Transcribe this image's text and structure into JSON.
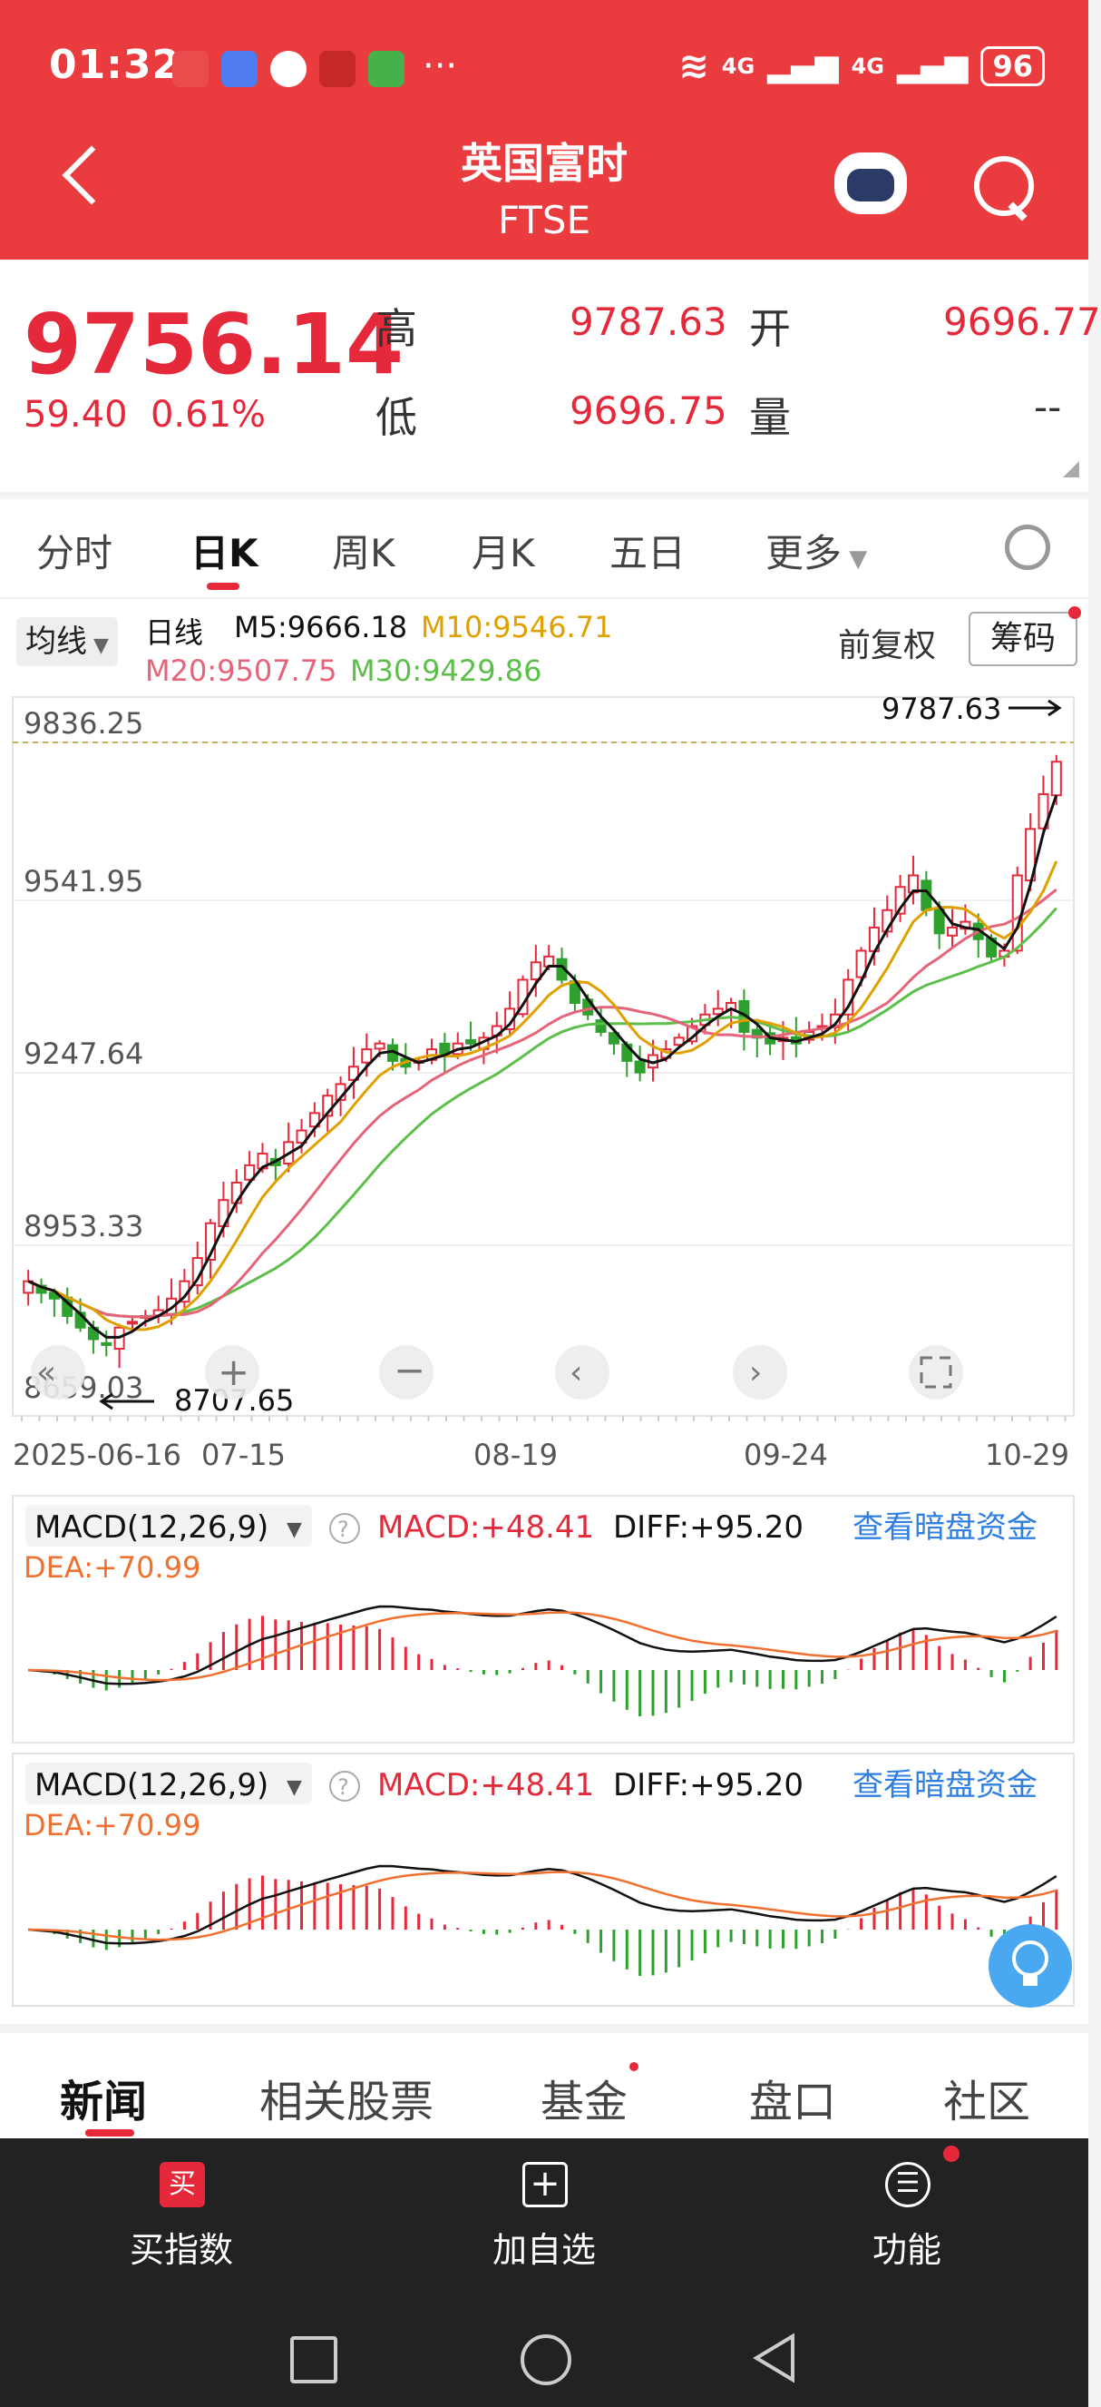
{
  "status": {
    "time": "01:32",
    "network1": "4G",
    "network2": "4G",
    "battery": "96"
  },
  "header": {
    "title": "英国富时",
    "subtitle": "FTSE"
  },
  "quote": {
    "price": "9756.14",
    "change": "59.40",
    "change_pct": "0.61%",
    "high_label": "高",
    "high": "9787.63",
    "open_label": "开",
    "open": "9696.77",
    "low_label": "低",
    "low": "9696.75",
    "vol_label": "量",
    "vol": "--"
  },
  "ktabs": {
    "items": [
      "分时",
      "日K",
      "周K",
      "月K",
      "五日",
      "更多"
    ],
    "active": "日K"
  },
  "chart_toolbar": {
    "junxian": "均线",
    "fuquan": "前复权",
    "chouma": "筹码"
  },
  "ma_legend": {
    "daily": "日线",
    "m5": "M5:9666.18",
    "m10": "M10:9546.71",
    "m20": "M20:9507.75",
    "m30": "M30:9429.86"
  },
  "colors": {
    "up": "#e5283a",
    "down": "#2ea02e",
    "m5": "#111111",
    "m10": "#e0a000",
    "m20": "#e5647a",
    "m30": "#5cbf4a",
    "dea": "#f07030",
    "header": "#ea3b3f",
    "link": "#2f7fe0"
  },
  "macd": {
    "name": "MACD(12,26,9)",
    "macd": "MACD:+48.41",
    "diff": "DIFF:+95.20",
    "dea": "DEA:+70.99",
    "link": "查看暗盘资金"
  },
  "chart_data": {
    "type": "candlestick",
    "y_ticks": [
      "9836.25",
      "9541.95",
      "9247.64",
      "8953.33",
      "8659.03"
    ],
    "ylim": [
      8659.03,
      9836.25
    ],
    "x_ticks": [
      "2025-06-16",
      "07-15",
      "08-19",
      "09-24",
      "10-29"
    ],
    "high_marker": "9787.63",
    "low_marker": "8707.65",
    "close_series": [
      8860,
      8840,
      8830,
      8800,
      8780,
      8760,
      8750,
      8780,
      8790,
      8800,
      8810,
      8830,
      8860,
      8900,
      8960,
      9000,
      9030,
      9060,
      9080,
      9060,
      9100,
      9120,
      9150,
      9180,
      9200,
      9230,
      9260,
      9270,
      9240,
      9230,
      9240,
      9260,
      9250,
      9270,
      9270,
      9280,
      9300,
      9330,
      9380,
      9410,
      9420,
      9380,
      9340,
      9320,
      9290,
      9270,
      9240,
      9220,
      9250,
      9260,
      9280,
      9300,
      9320,
      9330,
      9340,
      9290,
      9280,
      9270,
      9280,
      9270,
      9290,
      9300,
      9320,
      9380,
      9430,
      9470,
      9500,
      9540,
      9560,
      9500,
      9460,
      9470,
      9480,
      9450,
      9420,
      9430,
      9560,
      9640,
      9700,
      9756
    ],
    "m5": "9666.18",
    "m10": "9546.71",
    "m20": "9507.75",
    "m30": "9429.86"
  },
  "news_tabs": [
    "新闻",
    "相关股票",
    "基金",
    "盘口",
    "社区"
  ],
  "actions": {
    "buy": "买指数",
    "buy_icon": "买",
    "add": "加自选",
    "func": "功能"
  }
}
